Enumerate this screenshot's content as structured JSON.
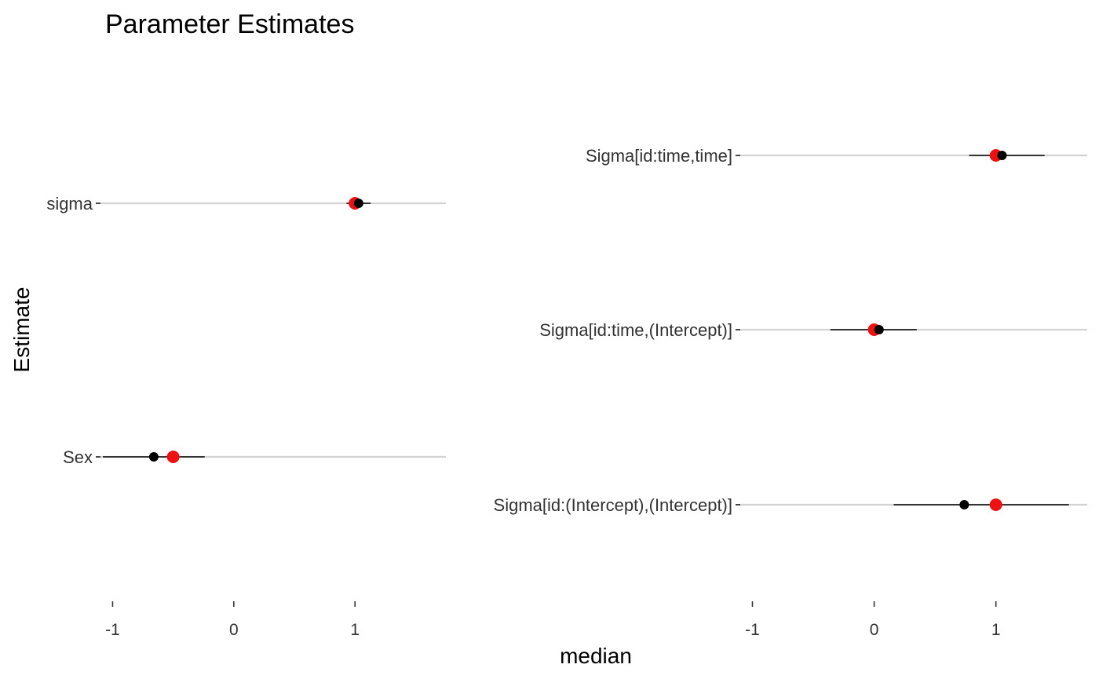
{
  "chart_data": {
    "type": "scatter",
    "title": "Parameter Estimates",
    "ylabel": "Estimate",
    "xlabel": "median",
    "colors": {
      "reference": "#ee1111",
      "estimate": "#000000",
      "range": "#d3d3d3",
      "interval": "#000000"
    },
    "panels": [
      {
        "xlim": [
          -1.1,
          1.75
        ],
        "xticks": [
          -1,
          0,
          1
        ],
        "xtick_labels": [
          "-1",
          "0",
          "1"
        ],
        "categories": [
          "sigma",
          "Sex"
        ],
        "points": [
          {
            "label": "sigma",
            "reference": 1.0,
            "median": 1.03,
            "lower": 0.93,
            "upper": 1.13
          },
          {
            "label": "Sex",
            "reference": -0.5,
            "median": -0.66,
            "lower": -1.08,
            "upper": -0.24
          }
        ]
      },
      {
        "xlim": [
          -1.1,
          1.75
        ],
        "xticks": [
          -1,
          0,
          1
        ],
        "xtick_labels": [
          "-1",
          "0",
          "1"
        ],
        "categories": [
          "Sigma[id:time,time]",
          "Sigma[id:time,(Intercept)]",
          "Sigma[id:(Intercept),(Intercept)]"
        ],
        "points": [
          {
            "label": "Sigma[id:time,time]",
            "reference": 1.0,
            "median": 1.05,
            "lower": 0.78,
            "upper": 1.4
          },
          {
            "label": "Sigma[id:time,(Intercept)]",
            "reference": 0.0,
            "median": 0.04,
            "lower": -0.36,
            "upper": 0.35
          },
          {
            "label": "Sigma[id:(Intercept),(Intercept)]",
            "reference": 1.0,
            "median": 0.74,
            "lower": 0.16,
            "upper": 1.6
          }
        ]
      }
    ]
  }
}
